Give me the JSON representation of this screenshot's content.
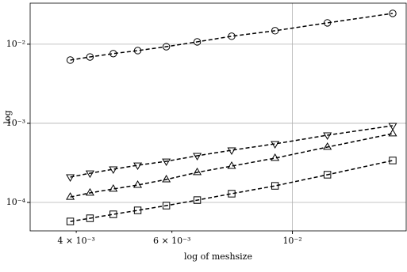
{
  "chart_data": {
    "type": "line",
    "xlabel": "log of meshsize",
    "ylabel": "log",
    "xscale": "log",
    "yscale": "log",
    "grid": true,
    "xlim": [
      0.00329,
      0.0162
    ],
    "ylim": [
      4.37e-05,
      0.033
    ],
    "xticks": [
      {
        "value": 0.004,
        "label": "4 × 10⁻³"
      },
      {
        "value": 0.006,
        "label": "6 × 10⁻³"
      },
      {
        "value": 0.01,
        "label": "10⁻²"
      }
    ],
    "yticks": [
      {
        "value": 0.0001,
        "label": "10⁻⁴"
      },
      {
        "value": 0.001,
        "label": "10⁻³"
      },
      {
        "value": 0.01,
        "label": "10⁻²"
      }
    ],
    "x": [
      0.0039,
      0.00424,
      0.00468,
      0.00519,
      0.00586,
      0.00668,
      0.00773,
      0.00929,
      0.0116,
      0.0153
    ],
    "series": [
      {
        "marker": "circle",
        "color": "#000000",
        "values": [
          0.0063,
          0.0069,
          0.0076,
          0.0083,
          0.0093,
          0.0107,
          0.0126,
          0.0148,
          0.0186,
          0.0245
        ]
      },
      {
        "marker": "triangle-down",
        "color": "#000000",
        "values": [
          0.000209,
          0.000234,
          0.000263,
          0.000295,
          0.000331,
          0.000389,
          0.000457,
          0.00055,
          0.000708,
          0.000933
        ]
      },
      {
        "marker": "triangle-up",
        "color": "#000000",
        "values": [
          0.000117,
          0.000132,
          0.000148,
          0.000166,
          0.000195,
          0.00024,
          0.000288,
          0.000363,
          0.000501,
          0.000741
        ]
      },
      {
        "marker": "square",
        "color": "#000000",
        "values": [
          5.75e-05,
          6.31e-05,
          7.08e-05,
          7.94e-05,
          9.12e-05,
          0.000107,
          0.000129,
          0.000162,
          0.000224,
          0.000339
        ]
      }
    ]
  }
}
